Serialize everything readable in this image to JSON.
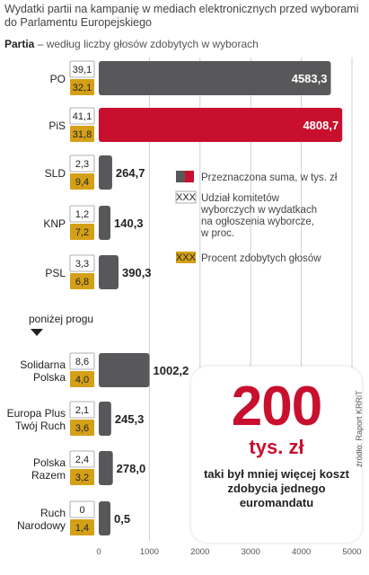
{
  "title": "Wydatki partii na kampanię w mediach elektronicznych przed wyborami do Parlamentu Europejskiego",
  "subtitle_bold": "Partia",
  "subtitle_rest": " – według liczby głosów zdobytych w wyborach",
  "below_threshold": "poniżej progu",
  "source": "źródło: Raport KRRiT",
  "legend": {
    "sum": "Przeznaczona suma, w tys. zł",
    "share": "Udział komitetów wyborczych w wydatkach na ogłoszenia wyborcze, w proc.",
    "share_lines": [
      "Udział komitetów",
      "wyborczych w wydatkach",
      "na ogłoszenia wyborcze,",
      "w proc."
    ],
    "votes": "Procent zdobytych głosów",
    "sample": "XXX"
  },
  "promo": {
    "number": "200",
    "unit": "tys. zł",
    "text": "taki był mniej więcej koszt zdobycia jednego euromandatu"
  },
  "colors": {
    "gray": "#58585a",
    "red": "#c8102e",
    "gold": "#d4a017"
  },
  "chart_data": {
    "type": "bar",
    "orientation": "horizontal",
    "title": "Wydatki partii na kampanię w mediach elektronicznych przed wyborami do Parlamentu Europejskiego",
    "xlim": [
      0,
      5000
    ],
    "xticks": [
      "0",
      "1000",
      "2000",
      "3000",
      "4000",
      "5000"
    ],
    "categories": [
      "PO",
      "PiS",
      "SLD",
      "KNP",
      "PSL",
      "Solidarna Polska",
      "Europa Plus Twój Ruch",
      "Polska Razem",
      "Ruch Narodowy"
    ],
    "series": [
      {
        "name": "Przeznaczona suma, w tys. zł",
        "values": [
          4583.3,
          4808.7,
          264.7,
          140.3,
          390.3,
          1002.2,
          245.3,
          278.0,
          0.5
        ],
        "labels": [
          "4583,3",
          "4808,7",
          "264,7",
          "140,3",
          "390,3",
          "1002,2",
          "245,3",
          "278,0",
          "0,5"
        ]
      },
      {
        "name": "Udział komitetów wyborczych w wydatkach na ogłoszenia wyborcze, w proc.",
        "values": [
          39.1,
          41.1,
          2.3,
          1.2,
          3.3,
          8.6,
          2.1,
          2.4,
          0
        ],
        "labels": [
          "39,1",
          "41,1",
          "2,3",
          "1,2",
          "3,3",
          "8,6",
          "2,1",
          "2,4",
          "0"
        ]
      },
      {
        "name": "Procent zdobytych głosów",
        "values": [
          32.1,
          31.8,
          9.4,
          7.2,
          6.8,
          4.0,
          3.6,
          3.2,
          1.4
        ],
        "labels": [
          "32,1",
          "31,8",
          "9,4",
          "7,2",
          "6,8",
          "4,0",
          "3,6",
          "3,2",
          "1,4"
        ]
      }
    ],
    "category_lines": [
      [
        "PO"
      ],
      [
        "PiS"
      ],
      [
        "SLD"
      ],
      [
        "KNP"
      ],
      [
        "PSL"
      ],
      [
        "Solidarna",
        "Polska"
      ],
      [
        "Europa Plus",
        "Twój Ruch"
      ],
      [
        "Polska",
        "Razem"
      ],
      [
        "Ruch",
        "Narodowy"
      ]
    ],
    "highlight": "PiS",
    "grid": true
  }
}
